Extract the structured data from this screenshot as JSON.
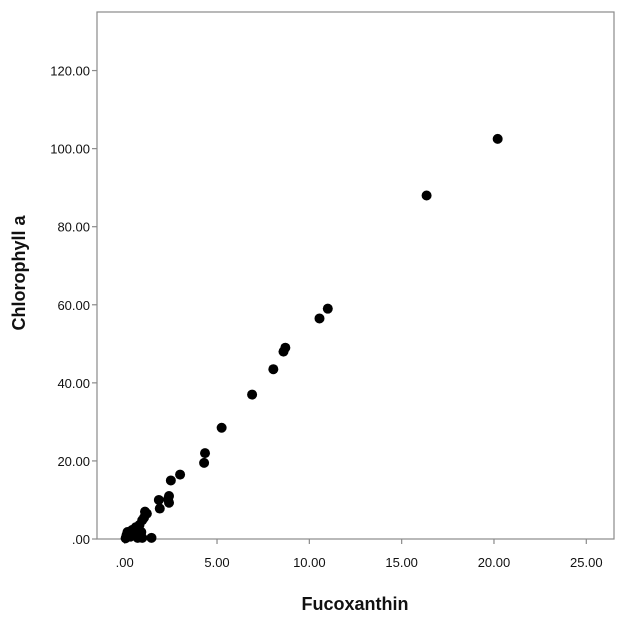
{
  "chart_data": {
    "type": "scatter",
    "title": "",
    "xlabel": "Fucoxanthin",
    "ylabel": "Chlorophyll a",
    "xlim": [
      -1.5,
      26.5
    ],
    "ylim": [
      0,
      135
    ],
    "x_ticks": [
      0,
      5,
      10,
      15,
      20,
      25
    ],
    "x_tick_labels": [
      ".00",
      "5.00",
      "10.00",
      "15.00",
      "20.00",
      "25.00"
    ],
    "y_ticks": [
      0,
      20,
      40,
      60,
      80,
      100,
      120
    ],
    "y_tick_labels": [
      ".00",
      "20.00",
      "40.00",
      "60.00",
      "80.00",
      "100.00",
      "120.00"
    ],
    "grid": false,
    "legend": "none",
    "colors": {
      "marker": "#000000",
      "frame": "#8a8a8a",
      "text": "#111111",
      "background": "#ffffff"
    },
    "series": [
      {
        "points": [
          {
            "x": 0.05,
            "y": 0.2
          },
          {
            "x": 0.1,
            "y": 1.0
          },
          {
            "x": 0.15,
            "y": 1.8
          },
          {
            "x": 0.3,
            "y": 0.6
          },
          {
            "x": 0.4,
            "y": 2.3
          },
          {
            "x": 0.5,
            "y": 1.2
          },
          {
            "x": 0.6,
            "y": 3.0
          },
          {
            "x": 0.7,
            "y": 0.3
          },
          {
            "x": 0.8,
            "y": 3.6
          },
          {
            "x": 0.9,
            "y": 1.8
          },
          {
            "x": 0.95,
            "y": 4.8
          },
          {
            "x": 1.05,
            "y": 5.5
          },
          {
            "x": 1.1,
            "y": 7.0
          },
          {
            "x": 1.2,
            "y": 6.5
          },
          {
            "x": 0.95,
            "y": 0.3
          },
          {
            "x": 1.45,
            "y": 0.3
          },
          {
            "x": 1.85,
            "y": 10.0
          },
          {
            "x": 1.9,
            "y": 7.8
          },
          {
            "x": 2.35,
            "y": 10.2
          },
          {
            "x": 2.4,
            "y": 9.3
          },
          {
            "x": 2.4,
            "y": 11.0
          },
          {
            "x": 2.5,
            "y": 15.0
          },
          {
            "x": 3.0,
            "y": 16.5
          },
          {
            "x": 4.3,
            "y": 19.5
          },
          {
            "x": 4.35,
            "y": 22.0
          },
          {
            "x": 5.25,
            "y": 28.5
          },
          {
            "x": 6.9,
            "y": 37.0
          },
          {
            "x": 8.05,
            "y": 43.5
          },
          {
            "x": 8.6,
            "y": 48.0
          },
          {
            "x": 8.7,
            "y": 49.0
          },
          {
            "x": 10.55,
            "y": 56.5
          },
          {
            "x": 11.0,
            "y": 59.0
          },
          {
            "x": 16.35,
            "y": 88.0
          },
          {
            "x": 20.2,
            "y": 102.5
          }
        ]
      }
    ]
  }
}
